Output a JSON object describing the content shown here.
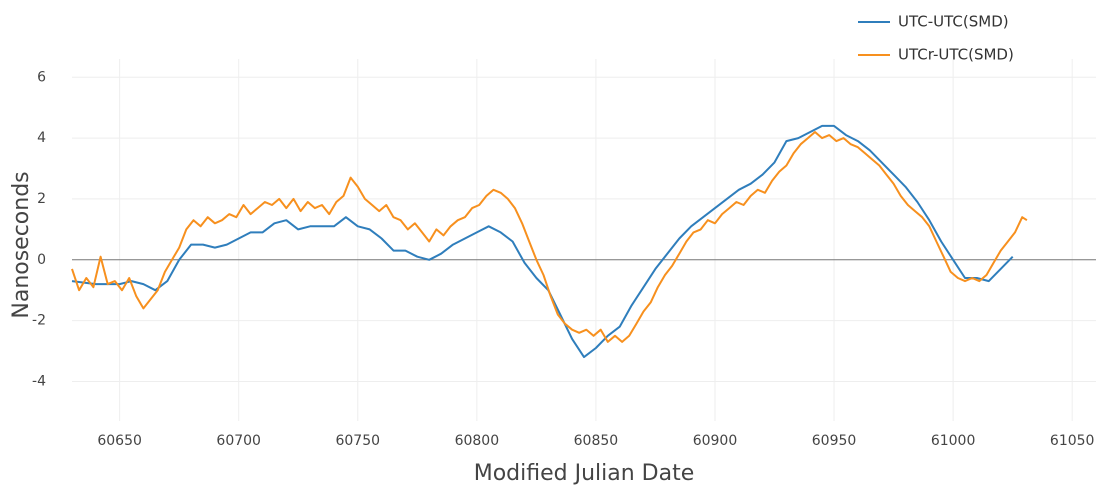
{
  "chart_data": {
    "type": "line",
    "xlabel": "Modified Julian Date",
    "ylabel": "Nanoseconds",
    "xlim": [
      60630,
      61060
    ],
    "ylim": [
      -5.3,
      6.6
    ],
    "xticks": [
      60650,
      60700,
      60750,
      60800,
      60850,
      60900,
      60950,
      61000,
      61050
    ],
    "yticks": [
      -4,
      -2,
      0,
      2,
      4,
      6
    ],
    "grid": true,
    "zeroline": true,
    "legend": "top-right",
    "series": [
      {
        "name": "UTC-UTC(SMD)",
        "color": "#2f7ebc",
        "x": [
          60630,
          60640,
          60650,
          60655,
          60660,
          60665,
          60670,
          60675,
          60680,
          60685,
          60690,
          60695,
          60700,
          60705,
          60710,
          60715,
          60720,
          60725,
          60730,
          60740,
          60745,
          60750,
          60755,
          60760,
          60765,
          60770,
          60775,
          60780,
          60785,
          60790,
          60795,
          60800,
          60805,
          60810,
          60815,
          60820,
          60825,
          60830,
          60835,
          60840,
          60845,
          60850,
          60855,
          60860,
          60865,
          60870,
          60875,
          60880,
          60885,
          60890,
          60895,
          60900,
          60905,
          60910,
          60915,
          60920,
          60925,
          60930,
          60935,
          60940,
          60945,
          60950,
          60955,
          60960,
          60965,
          60970,
          60975,
          60980,
          60985,
          60990,
          60995,
          61000,
          61005,
          61010,
          61015,
          61020,
          61025
        ],
        "values": [
          -0.7,
          -0.8,
          -0.8,
          -0.7,
          -0.8,
          -1.0,
          -0.7,
          0,
          0.5,
          0.5,
          0.4,
          0.5,
          0.7,
          0.9,
          0.9,
          1.2,
          1.3,
          1.0,
          1.1,
          1.1,
          1.4,
          1.1,
          1.0,
          0.7,
          0.3,
          0.3,
          0.1,
          0,
          0.2,
          0.5,
          0.7,
          0.9,
          1.1,
          0.9,
          0.6,
          -0.1,
          -0.6,
          -1.0,
          -1.8,
          -2.6,
          -3.2,
          -2.9,
          -2.5,
          -2.2,
          -1.5,
          -0.9,
          -0.3,
          0.2,
          0.7,
          1.1,
          1.4,
          1.7,
          2.0,
          2.3,
          2.5,
          2.8,
          3.2,
          3.9,
          4.0,
          4.2,
          4.4,
          4.4,
          4.1,
          3.9,
          3.6,
          3.2,
          2.8,
          2.4,
          1.9,
          1.3,
          0.6,
          0,
          -0.6,
          -0.6,
          -0.7,
          -0.3,
          0.1
        ]
      },
      {
        "name": "UTCr-UTC(SMD)",
        "color": "#f7901e",
        "x": [
          60630,
          60633,
          60636,
          60639,
          60642,
          60645,
          60648,
          60651,
          60654,
          60657,
          60660,
          60663,
          60666,
          60669,
          60672,
          60675,
          60678,
          60681,
          60684,
          60687,
          60690,
          60693,
          60696,
          60699,
          60702,
          60705,
          60708,
          60711,
          60714,
          60717,
          60720,
          60723,
          60726,
          60729,
          60732,
          60735,
          60738,
          60741,
          60744,
          60747,
          60750,
          60753,
          60756,
          60759,
          60762,
          60765,
          60768,
          60771,
          60774,
          60777,
          60780,
          60783,
          60786,
          60789,
          60792,
          60795,
          60798,
          60801,
          60804,
          60807,
          60810,
          60813,
          60816,
          60819,
          60822,
          60825,
          60828,
          60831,
          60834,
          60837,
          60840,
          60843,
          60846,
          60849,
          60852,
          60855,
          60858,
          60861,
          60864,
          60867,
          60870,
          60873,
          60876,
          60879,
          60882,
          60885,
          60888,
          60891,
          60894,
          60897,
          60900,
          60903,
          60906,
          60909,
          60912,
          60915,
          60918,
          60921,
          60924,
          60927,
          60930,
          60933,
          60936,
          60939,
          60942,
          60945,
          60948,
          60951,
          60954,
          60957,
          60960,
          60963,
          60966,
          60969,
          60972,
          60975,
          60978,
          60981,
          60984,
          60987,
          60990,
          60993,
          60996,
          60999,
          61002,
          61005,
          61008,
          61011,
          61014,
          61017,
          61020,
          61023,
          61026,
          61029,
          61031
        ],
        "values": [
          -0.3,
          -1.0,
          -0.6,
          -0.9,
          0.1,
          -0.8,
          -0.7,
          -1.0,
          -0.6,
          -1.2,
          -1.6,
          -1.3,
          -1.0,
          -0.4,
          0.0,
          0.4,
          1.0,
          1.3,
          1.1,
          1.4,
          1.2,
          1.3,
          1.5,
          1.4,
          1.8,
          1.5,
          1.7,
          1.9,
          1.8,
          2.0,
          1.7,
          2.0,
          1.6,
          1.9,
          1.7,
          1.8,
          1.5,
          1.9,
          2.1,
          2.7,
          2.4,
          2.0,
          1.8,
          1.6,
          1.8,
          1.4,
          1.3,
          1.0,
          1.2,
          0.9,
          0.6,
          1.0,
          0.8,
          1.1,
          1.3,
          1.4,
          1.7,
          1.8,
          2.1,
          2.3,
          2.2,
          2.0,
          1.7,
          1.2,
          0.6,
          0.0,
          -0.5,
          -1.2,
          -1.8,
          -2.1,
          -2.3,
          -2.4,
          -2.3,
          -2.5,
          -2.3,
          -2.7,
          -2.5,
          -2.7,
          -2.5,
          -2.1,
          -1.7,
          -1.4,
          -0.9,
          -0.5,
          -0.2,
          0.2,
          0.6,
          0.9,
          1.0,
          1.3,
          1.2,
          1.5,
          1.7,
          1.9,
          1.8,
          2.1,
          2.3,
          2.2,
          2.6,
          2.9,
          3.1,
          3.5,
          3.8,
          4.0,
          4.2,
          4.0,
          4.1,
          3.9,
          4.0,
          3.8,
          3.7,
          3.5,
          3.3,
          3.1,
          2.8,
          2.5,
          2.1,
          1.8,
          1.6,
          1.4,
          1.1,
          0.6,
          0.1,
          -0.4,
          -0.6,
          -0.7,
          -0.6,
          -0.7,
          -0.5,
          -0.1,
          0.3,
          0.6,
          0.9,
          1.4,
          1.3
        ]
      }
    ]
  }
}
